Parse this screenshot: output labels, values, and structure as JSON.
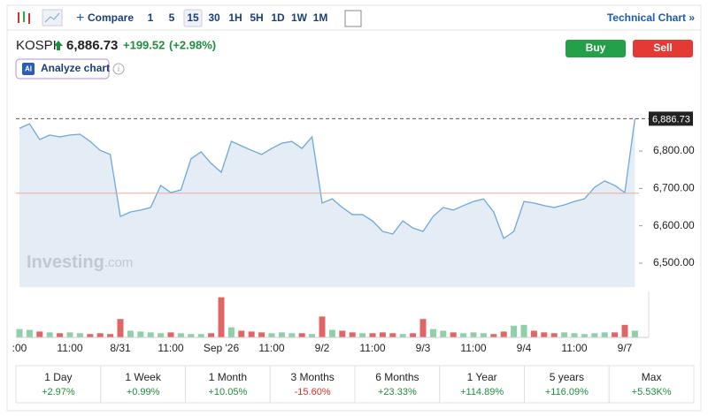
{
  "toolbar": {
    "compare": "Compare",
    "intervals": [
      "1",
      "5",
      "15",
      "30",
      "1H",
      "5H",
      "1D",
      "1W",
      "1M"
    ],
    "active": "15",
    "technical": "Technical Chart »"
  },
  "header": {
    "symbol": "KOSPI",
    "price": "6,886.73",
    "change": "+199.52",
    "change_pct": "(+2.98%)",
    "buy": "Buy",
    "sell": "Sell",
    "ai_badge": "AI",
    "analyze": "Analyze chart"
  },
  "watermark": {
    "brand": "Investing",
    "suffix": ".com"
  },
  "chart_data": {
    "type": "area",
    "color": "#6fa8dc",
    "fill": "#e4ecf5",
    "categories": [
      ":00",
      null,
      null,
      null,
      null,
      "11:00",
      null,
      null,
      null,
      null,
      "8/31",
      null,
      null,
      null,
      null,
      "11:00",
      null,
      null,
      null,
      null,
      "Sep '26",
      null,
      null,
      null,
      null,
      "11:00",
      null,
      null,
      null,
      null,
      "9/2",
      null,
      null,
      null,
      null,
      "11:00",
      null,
      null,
      null,
      null,
      "9/3",
      null,
      null,
      null,
      null,
      "11:00",
      null,
      null,
      null,
      null,
      "9/4",
      null,
      null,
      null,
      null,
      "11:00",
      null,
      null,
      null,
      null,
      "9/7",
      null
    ],
    "values": [
      6861,
      6873,
      6831,
      6843,
      6838,
      6843,
      6845,
      6826,
      6802,
      6791,
      6625,
      6637,
      6642,
      6649,
      6708,
      6689,
      6696,
      6779,
      6798,
      6767,
      6743,
      6826,
      6814,
      6802,
      6791,
      6807,
      6821,
      6826,
      6807,
      6838,
      6661,
      6672,
      6649,
      6630,
      6630,
      6613,
      6585,
      6578,
      6613,
      6594,
      6585,
      6625,
      6649,
      6642,
      6654,
      6665,
      6672,
      6637,
      6566,
      6585,
      6665,
      6661,
      6654,
      6649,
      6656,
      6665,
      6672,
      6703,
      6720,
      6708,
      6689,
      6886.73
    ],
    "last_label": "6,886.73",
    "reference_line": 6687.21,
    "ylim": [
      6436,
      6968
    ],
    "yticks": [
      {
        "value": 6500,
        "label": "6,500.00"
      },
      {
        "value": 6600,
        "label": "6,600.00"
      },
      {
        "value": 6700,
        "label": "6,700.00"
      },
      {
        "value": 6800,
        "label": "6,800.00"
      }
    ],
    "volume": [
      10,
      9,
      7,
      6,
      5,
      6,
      5,
      4,
      5,
      4,
      22,
      8,
      7,
      6,
      5,
      6,
      5,
      4,
      4,
      5,
      48,
      12,
      8,
      7,
      6,
      5,
      6,
      5,
      5,
      4,
      25,
      9,
      8,
      6,
      5,
      5,
      6,
      5,
      4,
      5,
      22,
      10,
      8,
      6,
      5,
      6,
      5,
      4,
      7,
      14,
      15,
      8,
      6,
      5,
      6,
      5,
      4,
      5,
      6,
      6,
      15,
      8
    ],
    "volume_lim": [
      0,
      55
    ],
    "up_color": "#8fcfa9",
    "down_color": "#e06666"
  },
  "periods": [
    {
      "label": "1 Day",
      "change": "+2.97%",
      "color": "#1e8e3e"
    },
    {
      "label": "1 Week",
      "change": "+0.99%",
      "color": "#1e8e3e"
    },
    {
      "label": "1 Month",
      "change": "+10.05%",
      "color": "#1e8e3e"
    },
    {
      "label": "3 Months",
      "change": "-15.60%",
      "color": "#d93025"
    },
    {
      "label": "6 Months",
      "change": "+23.33%",
      "color": "#1e8e3e"
    },
    {
      "label": "1 Year",
      "change": "+114.89%",
      "color": "#1e8e3e"
    },
    {
      "label": "5 years",
      "change": "+116.09%",
      "color": "#1e8e3e"
    },
    {
      "label": "Max",
      "change": "+5.53K%",
      "color": "#1e8e3e"
    }
  ]
}
